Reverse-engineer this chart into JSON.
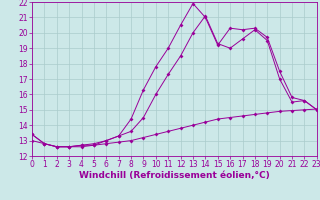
{
  "xlabel": "Windchill (Refroidissement éolien,°C)",
  "background_color": "#cce8e8",
  "grid_color": "#aacccc",
  "line_color": "#990099",
  "xlim": [
    0,
    23
  ],
  "ylim": [
    12,
    22
  ],
  "xticks": [
    0,
    1,
    2,
    3,
    4,
    5,
    6,
    7,
    8,
    9,
    10,
    11,
    12,
    13,
    14,
    15,
    16,
    17,
    18,
    19,
    20,
    21,
    22,
    23
  ],
  "yticks": [
    12,
    13,
    14,
    15,
    16,
    17,
    18,
    19,
    20,
    21,
    22
  ],
  "s1_x": [
    0,
    1,
    2,
    3,
    4,
    5,
    6,
    7,
    8,
    9,
    10,
    11,
    12,
    13,
    14,
    15,
    16,
    17,
    18,
    19,
    20,
    21,
    22,
    23
  ],
  "s1_y": [
    13.4,
    12.8,
    12.6,
    12.6,
    12.7,
    12.8,
    13.0,
    13.3,
    14.4,
    16.3,
    17.8,
    19.0,
    20.5,
    21.9,
    21.0,
    19.2,
    20.3,
    20.2,
    20.3,
    19.7,
    17.5,
    15.8,
    15.6,
    15.0
  ],
  "s2_x": [
    0,
    1,
    2,
    3,
    4,
    5,
    6,
    7,
    8,
    9,
    10,
    11,
    12,
    13,
    14,
    15,
    16,
    17,
    18,
    19,
    20,
    21,
    22,
    23
  ],
  "s2_y": [
    13.4,
    12.8,
    12.6,
    12.6,
    12.7,
    12.7,
    13.0,
    13.3,
    13.6,
    14.5,
    16.0,
    17.3,
    18.5,
    20.0,
    21.1,
    19.3,
    19.0,
    19.6,
    20.2,
    19.5,
    17.0,
    15.5,
    15.6,
    15.0
  ],
  "s3_x": [
    0,
    1,
    2,
    3,
    4,
    5,
    6,
    7,
    8,
    9,
    10,
    11,
    12,
    13,
    14,
    15,
    16,
    17,
    18,
    19,
    20,
    21,
    22,
    23
  ],
  "s3_y": [
    13.0,
    12.8,
    12.6,
    12.6,
    12.6,
    12.7,
    12.8,
    12.9,
    13.0,
    13.2,
    13.4,
    13.6,
    13.8,
    14.0,
    14.2,
    14.4,
    14.5,
    14.6,
    14.7,
    14.8,
    14.9,
    14.95,
    15.0,
    15.05
  ],
  "font_size_label": 6.5,
  "font_size_tick": 5.5
}
